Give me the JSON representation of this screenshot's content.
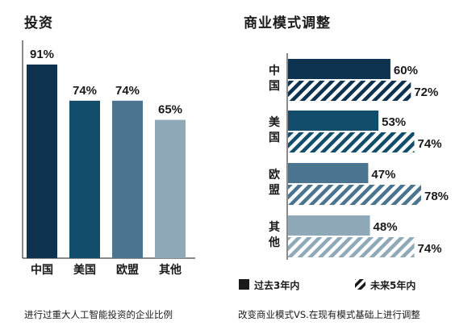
{
  "chart_data": [
    {
      "type": "bar",
      "title": "投资",
      "caption": "进行过重大人工智能投资的企业比例",
      "categories": [
        "中国",
        "美国",
        "欧盟",
        "其他"
      ],
      "values": [
        91,
        74,
        74,
        65
      ],
      "value_labels": [
        "91%",
        "74%",
        "74%",
        "65%"
      ],
      "colors": [
        "#0e3350",
        "#124d6b",
        "#4a748f",
        "#8fa9b8"
      ],
      "ylim": [
        0,
        100
      ],
      "grid": false
    },
    {
      "type": "bar",
      "orientation": "horizontal",
      "title": "商业模式调整",
      "caption": "改变商业模式VS.在现有模式基础上进行调整",
      "categories": [
        "中国",
        "美国",
        "欧盟",
        "其他"
      ],
      "category_labels": [
        [
          "中",
          "国"
        ],
        [
          "美",
          "国"
        ],
        [
          "欧",
          "盟"
        ],
        [
          "其",
          "他"
        ]
      ],
      "series": [
        {
          "name": "过去3年内",
          "values": [
            60,
            53,
            47,
            48
          ],
          "labels": [
            "60%",
            "53%",
            "47%",
            "48%"
          ],
          "pattern": "solid"
        },
        {
          "name": "未来5年内",
          "values": [
            72,
            74,
            78,
            74
          ],
          "labels": [
            "72%",
            "74%",
            "78%",
            "74%"
          ],
          "pattern": "hatched"
        }
      ],
      "colors": [
        "#0e3350",
        "#124d6b",
        "#4a748f",
        "#8fa9b8"
      ],
      "xlim": [
        0,
        100
      ],
      "legend_position": "bottom",
      "grid": false
    }
  ],
  "legend_icons": [
    "solid-square-icon",
    "hatched-square-icon"
  ]
}
